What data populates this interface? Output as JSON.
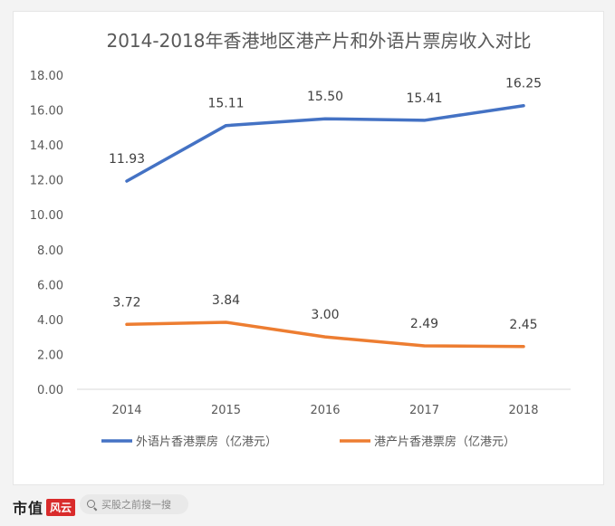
{
  "chart_data": {
    "type": "line",
    "title": "2014-2018年香港地区港产片和外语片票房收入对比",
    "categories": [
      "2014",
      "2015",
      "2016",
      "2017",
      "2018"
    ],
    "yticks": [
      "0.00",
      "2.00",
      "4.00",
      "6.00",
      "8.00",
      "10.00",
      "12.00",
      "14.00",
      "16.00",
      "18.00"
    ],
    "ylim": [
      0,
      18
    ],
    "grid": false,
    "legend_position": "bottom",
    "series": [
      {
        "name": "外语片香港票房（亿港元）",
        "values": [
          11.93,
          15.11,
          15.5,
          15.41,
          16.25
        ],
        "labels": [
          "11.93",
          "15.11",
          "15.50",
          "15.41",
          "16.25"
        ],
        "color": "#4472c4"
      },
      {
        "name": "港产片香港票房（亿港元）",
        "values": [
          3.72,
          3.84,
          3.0,
          2.49,
          2.45
        ],
        "labels": [
          "3.72",
          "3.84",
          "3.00",
          "2.49",
          "2.45"
        ],
        "color": "#ed7d31"
      }
    ]
  },
  "footer": {
    "brand": "市值",
    "brand_stamp": "风云",
    "search_placeholder": "买股之前搜一搜"
  }
}
